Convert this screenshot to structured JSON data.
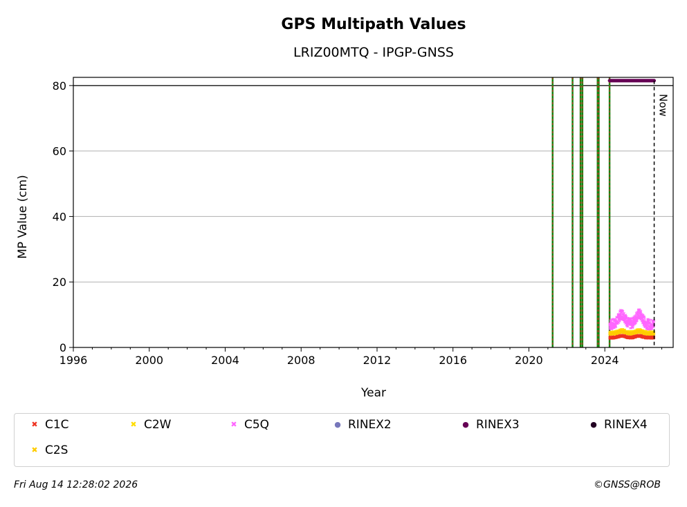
{
  "chart_data": {
    "type": "scatter",
    "title": "GPS Multipath Values",
    "subtitle": "LRIZ00MTQ - IPGP-GNSS",
    "xlabel": "Year",
    "ylabel": "MP Value (cm)",
    "xlim": [
      1996,
      2027.6
    ],
    "ylim": [
      0,
      82.5
    ],
    "x_ticks": [
      "1996",
      "2000",
      "2004",
      "2008",
      "2012",
      "2016",
      "2020",
      "2024"
    ],
    "y_ticks": [
      "0",
      "20",
      "40",
      "60",
      "80"
    ],
    "grid": "horizontal",
    "reference_line_y": 80,
    "now_x": 2026.6,
    "now_label": "Now",
    "event_lines_x": [
      2021.25,
      2022.3,
      2022.72,
      2022.82,
      2023.62,
      2023.68,
      2024.25
    ],
    "rinex3_range": [
      2024.25,
      2026.6
    ],
    "rinex3_y": 81.5,
    "series": [
      {
        "name": "C1C",
        "color": "#ee3322",
        "marker": "x",
        "x_range": [
          2024.25,
          2026.6
        ],
        "mean": 3.0,
        "amplitude": 0.6,
        "peaks": [
          2024.9,
          2025.8
        ]
      },
      {
        "name": "C2W",
        "color": "#ffdd00",
        "marker": "x",
        "x_range": [
          2024.25,
          2026.6
        ],
        "mean": 4.5,
        "amplitude": 0.8,
        "peaks": [
          2024.9,
          2025.8
        ]
      },
      {
        "name": "C5Q",
        "color": "#ff66ff",
        "marker": "x",
        "x_range": [
          2024.25,
          2026.6
        ],
        "mean": 7.0,
        "amplitude": 3.5,
        "peaks": [
          2024.9,
          2025.8
        ]
      },
      {
        "name": "C2S",
        "color": "#ffcc00",
        "marker": "x",
        "x_range": [
          2024.25,
          2026.6
        ],
        "mean": 4.2,
        "amplitude": 0.7,
        "peaks": [
          2024.9,
          2025.8
        ]
      }
    ],
    "legend": [
      {
        "label": "C1C",
        "color": "#ee3322",
        "marker": "x"
      },
      {
        "label": "C2W",
        "color": "#ffdd00",
        "marker": "x"
      },
      {
        "label": "C5Q",
        "color": "#ff66ff",
        "marker": "x"
      },
      {
        "label": "RINEX2",
        "color": "#7777bb",
        "marker": "dot"
      },
      {
        "label": "RINEX3",
        "color": "#660055",
        "marker": "dot"
      },
      {
        "label": "RINEX4",
        "color": "#220022",
        "marker": "dot"
      },
      {
        "label": "C2S",
        "color": "#ffcc00",
        "marker": "x"
      }
    ]
  },
  "footer": {
    "timestamp": "Fri Aug 14 12:28:02 2026",
    "copyright": "©GNSS@ROB"
  }
}
